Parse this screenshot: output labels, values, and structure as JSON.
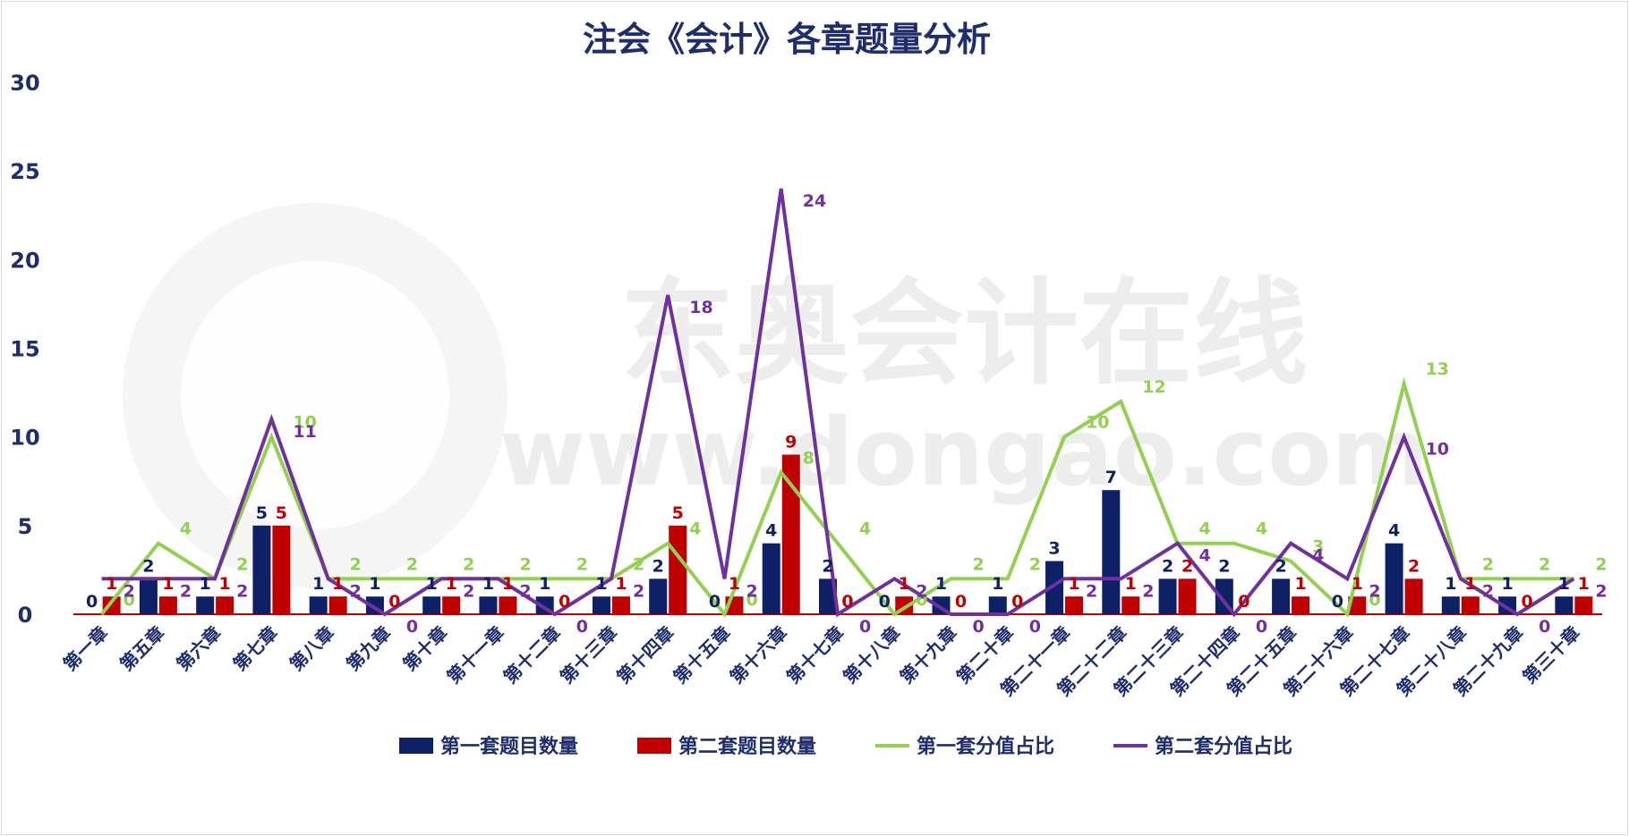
{
  "chart_data": {
    "type": "bar",
    "title": "注会《会计》各章题量分析",
    "watermark": "东奥会计在线 www.dongao.com",
    "ylim": [
      0,
      30
    ],
    "yticks": [
      0,
      5,
      10,
      15,
      20,
      25,
      30
    ],
    "grid": false,
    "legend_position": "bottom",
    "colors": {
      "set1_count": "#0f2166",
      "set2_count": "#c00000",
      "set1_share": "#92d050",
      "set2_share": "#7030a0",
      "axis_text": "#1f2d6d"
    },
    "categories": [
      "第一章",
      "第五章",
      "第六章",
      "第七章",
      "第八章",
      "第九章",
      "第十章",
      "第十一章",
      "第十二章",
      "第十三章",
      "第十四章",
      "第十五章",
      "第十六章",
      "第十七章",
      "第十八章",
      "第十九章",
      "第二十章",
      "第二十一章",
      "第二十二章",
      "第二十三章",
      "第二十四章",
      "第二十五章",
      "第二十六章",
      "第二十七章",
      "第二十八章",
      "第二十九章",
      "第三十章"
    ],
    "series": [
      {
        "name": "第一套题目数量",
        "kind": "bar",
        "values": [
          0,
          2,
          1,
          5,
          1,
          1,
          1,
          1,
          1,
          1,
          2,
          0,
          4,
          2,
          0,
          1,
          1,
          3,
          7,
          2,
          2,
          2,
          0,
          4,
          1,
          1,
          1
        ]
      },
      {
        "name": "第二套题目数量",
        "kind": "bar",
        "values": [
          1,
          1,
          1,
          5,
          1,
          0,
          1,
          1,
          0,
          1,
          5,
          1,
          9,
          0,
          1,
          0,
          0,
          1,
          1,
          2,
          0,
          1,
          1,
          2,
          1,
          0,
          1
        ]
      },
      {
        "name": "第一套分值占比",
        "kind": "line",
        "values": [
          0,
          4,
          2,
          10,
          2,
          2,
          2,
          2,
          2,
          2,
          4,
          0,
          8,
          4,
          0,
          2,
          2,
          10,
          12,
          4,
          4,
          3,
          0,
          13,
          2,
          2,
          2
        ]
      },
      {
        "name": "第二套分值占比",
        "kind": "line",
        "values": [
          2,
          2,
          2,
          11,
          2,
          0,
          2,
          2,
          0,
          2,
          18,
          2,
          24,
          0,
          2,
          0,
          0,
          2,
          2,
          4,
          0,
          4,
          2,
          10,
          2,
          0,
          2
        ]
      }
    ]
  }
}
